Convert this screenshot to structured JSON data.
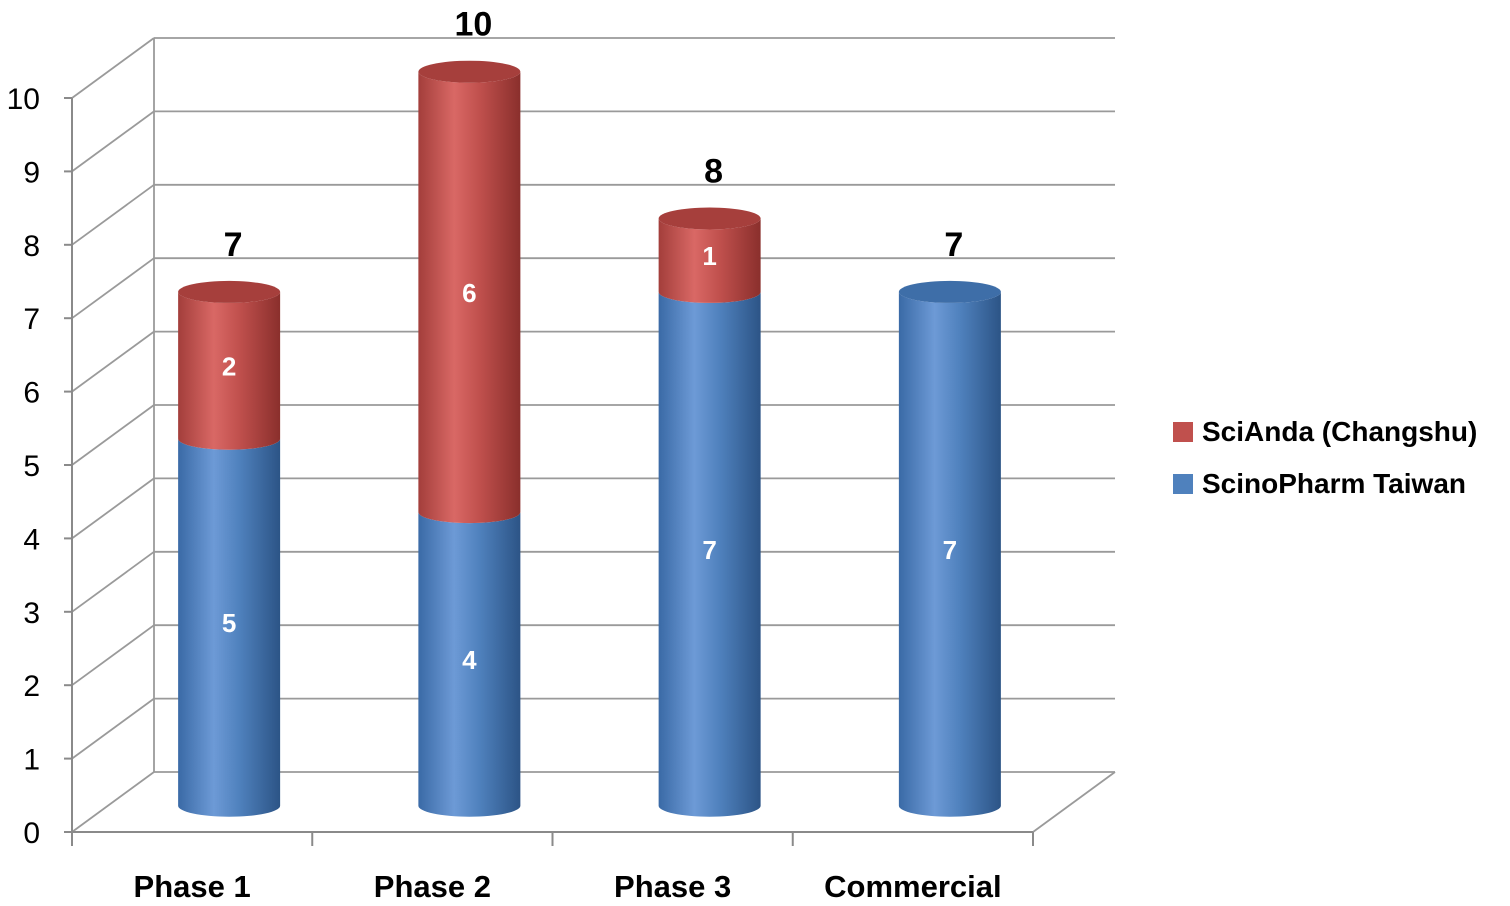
{
  "chart_data": {
    "type": "bar",
    "stacked": true,
    "style": "3d-cylinder",
    "categories": [
      "Phase 1",
      "Phase 2",
      "Phase 3",
      "Commercial"
    ],
    "series": [
      {
        "name": "ScinoPharm Taiwan",
        "values": [
          5,
          4,
          7,
          7
        ],
        "color": "#4f81bd"
      },
      {
        "name": "SciAnda (Changshu)",
        "values": [
          2,
          6,
          1,
          0
        ],
        "color": "#c0504d"
      }
    ],
    "totals": [
      7,
      10,
      8,
      7
    ],
    "yticks": [
      0,
      1,
      2,
      3,
      4,
      5,
      6,
      7,
      8,
      9,
      10
    ],
    "ylim": [
      0,
      10
    ],
    "grid": true,
    "legend_position": "right",
    "title": "",
    "xlabel": "",
    "ylabel": ""
  }
}
